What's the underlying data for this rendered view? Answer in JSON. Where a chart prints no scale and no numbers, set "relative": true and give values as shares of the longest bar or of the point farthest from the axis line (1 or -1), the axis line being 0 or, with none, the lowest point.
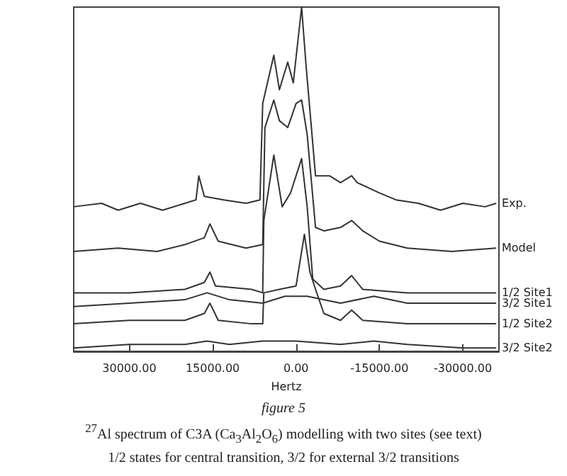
{
  "chart_data": {
    "type": "line",
    "relative": true,
    "xlabel": "Hertz",
    "xlim": [
      40000,
      -36500
    ],
    "xticks": [
      {
        "value": 30000,
        "label": "30000.00"
      },
      {
        "value": 15000,
        "label": "15000.00"
      },
      {
        "value": 0,
        "label": "0.00"
      },
      {
        "value": -15000,
        "label": "-15000.00"
      },
      {
        "value": -30000,
        "label": "-30000.00"
      }
    ],
    "grid": false,
    "legend": false,
    "marker": "none",
    "line_style": "solid",
    "tick_labels": "x",
    "annotations": [
      "figure 5",
      "$^{27}$Al spectrum of C3A (Ca$_{3}$Al$_{2}$O$_{6}$) modelling with two sites (see text)",
      "1/2 states for central transition, 3/2 for external 3/2 transitions"
    ],
    "series": [
      {
        "name": "Exp.",
        "color": "#333333",
        "x": [
          40000,
          35000,
          32000,
          28000,
          24000,
          20000,
          18000,
          17500,
          16500,
          13000,
          9000,
          6500,
          6000,
          4000,
          3000,
          1500,
          500,
          -1000,
          -1800,
          -3500,
          -6000,
          -8000,
          -10000,
          -11000,
          -15000,
          -18000,
          -22000,
          -26000,
          -30000,
          -34000,
          -36000
        ],
        "values": [
          0.42,
          0.43,
          0.41,
          0.43,
          0.41,
          0.43,
          0.44,
          0.51,
          0.45,
          0.44,
          0.43,
          0.44,
          0.72,
          0.86,
          0.76,
          0.84,
          0.78,
          1.0,
          0.83,
          0.51,
          0.51,
          0.49,
          0.51,
          0.49,
          0.46,
          0.44,
          0.43,
          0.41,
          0.43,
          0.42,
          0.43
        ]
      },
      {
        "name": "Model",
        "color": "#333333",
        "x": [
          40000,
          32000,
          25000,
          20000,
          16500,
          15500,
          14000,
          9000,
          6000,
          5600,
          4000,
          3000,
          1500,
          0,
          -1000,
          -2000,
          -3500,
          -5000,
          -8000,
          -10000,
          -12000,
          -15000,
          -20000,
          -28000,
          -36000
        ],
        "values": [
          0.29,
          0.3,
          0.29,
          0.31,
          0.33,
          0.37,
          0.32,
          0.3,
          0.31,
          0.65,
          0.73,
          0.67,
          0.65,
          0.72,
          0.73,
          0.63,
          0.36,
          0.35,
          0.36,
          0.38,
          0.35,
          0.32,
          0.3,
          0.29,
          0.3
        ]
      },
      {
        "name": "1/2 Site1",
        "color": "#333333",
        "x": [
          40000,
          30000,
          20000,
          16500,
          15500,
          14500,
          8000,
          6000,
          5800,
          4000,
          2500,
          1000,
          -1000,
          -2000,
          -3000,
          -5000,
          -8000,
          -10000,
          -12000,
          -20000,
          -36000
        ],
        "values": [
          0.17,
          0.17,
          0.18,
          0.2,
          0.23,
          0.19,
          0.18,
          0.17,
          0.38,
          0.57,
          0.42,
          0.46,
          0.56,
          0.42,
          0.21,
          0.18,
          0.19,
          0.22,
          0.18,
          0.17,
          0.17
        ]
      },
      {
        "name": "3/2 Site1",
        "color": "#333333",
        "x": [
          40000,
          30000,
          20000,
          16000,
          12000,
          6000,
          2000,
          -2000,
          -8000,
          -14000,
          -20000,
          -30000,
          -36000
        ],
        "values": [
          0.13,
          0.14,
          0.15,
          0.17,
          0.15,
          0.14,
          0.16,
          0.16,
          0.14,
          0.16,
          0.14,
          0.14,
          0.14
        ]
      },
      {
        "name": "1/2 Site2",
        "color": "#333333",
        "x": [
          40000,
          30000,
          20000,
          16500,
          15500,
          14000,
          8000,
          6000,
          5800,
          3000,
          0,
          -1500,
          -2500,
          -3500,
          -5000,
          -8000,
          -10000,
          -12000,
          -20000,
          -36000
        ],
        "values": [
          0.08,
          0.09,
          0.09,
          0.11,
          0.14,
          0.09,
          0.08,
          0.08,
          0.17,
          0.18,
          0.19,
          0.34,
          0.23,
          0.18,
          0.11,
          0.09,
          0.12,
          0.09,
          0.08,
          0.08
        ]
      },
      {
        "name": "3/2 Site2",
        "color": "#333333",
        "x": [
          40000,
          30000,
          20000,
          16000,
          12000,
          6000,
          0,
          -8000,
          -14000,
          -20000,
          -30000,
          -36000
        ],
        "values": [
          0.01,
          0.02,
          0.02,
          0.03,
          0.02,
          0.03,
          0.03,
          0.02,
          0.03,
          0.02,
          0.01,
          0.01
        ]
      }
    ]
  }
}
